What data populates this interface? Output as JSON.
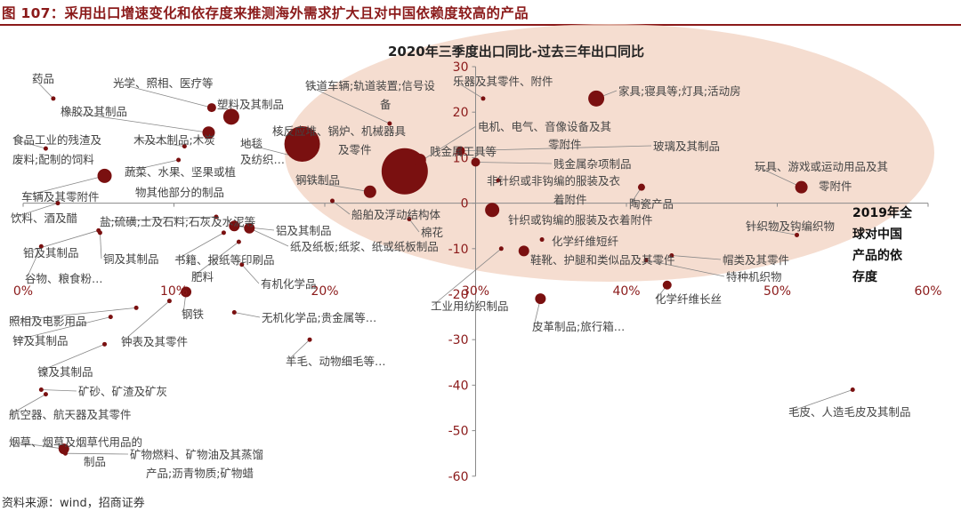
{
  "figure": {
    "title": "图 107：采用出口增速变化和依存度来推测海外需求扩大且对中国依赖度较高的产品",
    "source": "资料来源：wind，招商证券"
  },
  "colors": {
    "accent": "#8b1a1a",
    "marker": "#7a1010",
    "ellipse": "#f2d3c3"
  },
  "chart_data": {
    "type": "scatter",
    "title": "2020年三季度出口同比-过去三年出口同比",
    "xlabel": "2019年全球对中国产品的依存度",
    "ylabel": "",
    "xlim": [
      0,
      0.6
    ],
    "ylim": [
      -60,
      30
    ],
    "x_ticks": [
      "0%",
      "10%",
      "20%",
      "30%",
      "40%",
      "50%",
      "60%"
    ],
    "y_ticks": [
      "30",
      "20",
      "10",
      "0",
      "-10",
      "-20",
      "-30",
      "-40",
      "-50",
      "-60"
    ],
    "highlight": "ellipse over top-right region",
    "points": [
      {
        "label": "药品",
        "x": 0.02,
        "y": 23
      },
      {
        "label": "光学、照相、医疗等",
        "x": 0.125,
        "y": 21
      },
      {
        "label": "塑料及其制品",
        "x": 0.138,
        "y": 19
      },
      {
        "label": "橡胶及其制品",
        "x": 0.123,
        "y": 15.5
      },
      {
        "label": "食品工业的残渣及废料;配制的饲料",
        "x": 0.015,
        "y": 12
      },
      {
        "label": "木及木制品;木炭",
        "x": 0.107,
        "y": 12.5
      },
      {
        "label": "地毯及纺织…",
        "x": 0.183,
        "y": 10
      },
      {
        "label": "蔬菜、水果、坚果或植物其他部分的制品",
        "x": 0.103,
        "y": 9.5
      },
      {
        "label": "车辆及其零附件",
        "x": 0.054,
        "y": 6
      },
      {
        "label": "饮料、酒及醋",
        "x": 0.023,
        "y": 0
      },
      {
        "label": "盐;硫磺;土及石料;石灰及水泥等",
        "x": 0.128,
        "y": -3
      },
      {
        "label": "铅及其制品",
        "x": 0.05,
        "y": -6
      },
      {
        "label": "铜及其制品",
        "x": 0.051,
        "y": -6.5
      },
      {
        "label": "谷物、粮食粉…",
        "x": 0.012,
        "y": -9.5
      },
      {
        "label": "书籍、报纸等印刷品",
        "x": 0.133,
        "y": -6.5
      },
      {
        "label": "铝及其制品",
        "x": 0.14,
        "y": -5
      },
      {
        "label": "纸及纸板;纸浆、纸或纸板制品",
        "x": 0.15,
        "y": -5.5
      },
      {
        "label": "肥料",
        "x": 0.143,
        "y": -8.5
      },
      {
        "label": "有机化学品",
        "x": 0.145,
        "y": -13.5
      },
      {
        "label": "铁道车辆;轨道装置;信号设备",
        "x": 0.243,
        "y": 17.5
      },
      {
        "label": "核反应堆、锅炉、机械器具及零件",
        "x": 0.185,
        "y": 13
      },
      {
        "label": "钢铁制品",
        "x": 0.23,
        "y": 2.5
      },
      {
        "label": "电机、电气、音像设备及其零附件",
        "x": 0.253,
        "y": 7
      },
      {
        "label": "贱金属工具等",
        "x": 0.263,
        "y": 9.5
      },
      {
        "label": "船舶及浮动结构体",
        "x": 0.205,
        "y": 0.5
      },
      {
        "label": "棉花",
        "x": 0.256,
        "y": -3.5
      },
      {
        "label": "乐器及其零件、附件",
        "x": 0.305,
        "y": 23
      },
      {
        "label": "家具;寝具等;灯具;活动房",
        "x": 0.38,
        "y": 23
      },
      {
        "label": "玻璃及其制品",
        "x": 0.29,
        "y": 11.5
      },
      {
        "label": "贱金属杂项制品",
        "x": 0.3,
        "y": 9
      },
      {
        "label": "非针织或非钩编的服装及衣着附件",
        "x": 0.315,
        "y": 5
      },
      {
        "label": "陶瓷产品",
        "x": 0.41,
        "y": 3.5
      },
      {
        "label": "针织或钩编的服装及衣着附件",
        "x": 0.311,
        "y": -1.5
      },
      {
        "label": "玩具、游戏或运动用品及其零附件",
        "x": 0.516,
        "y": 3.5
      },
      {
        "label": "针织物及钩编织物",
        "x": 0.513,
        "y": -7
      },
      {
        "label": "化学纤维短纤",
        "x": 0.344,
        "y": -8
      },
      {
        "label": "鞋靴、护腿和类似品及其零件",
        "x": 0.332,
        "y": -10.5
      },
      {
        "label": "工业用纺织制品",
        "x": 0.317,
        "y": -10
      },
      {
        "label": "帽类及其零件",
        "x": 0.43,
        "y": -11.5
      },
      {
        "label": "特种机织物",
        "x": 0.413,
        "y": -12.5
      },
      {
        "label": "化学纤维长丝",
        "x": 0.427,
        "y": -18
      },
      {
        "label": "皮革制品;旅行箱…",
        "x": 0.343,
        "y": -21
      },
      {
        "label": "照相及电影用品",
        "x": 0.075,
        "y": -23
      },
      {
        "label": "钢铁",
        "x": 0.108,
        "y": -19.5
      },
      {
        "label": "钟表及其零件",
        "x": 0.097,
        "y": -21.5
      },
      {
        "label": "无机化学品;贵金属等…",
        "x": 0.14,
        "y": -24
      },
      {
        "label": "锌及其制品",
        "x": 0.058,
        "y": -25
      },
      {
        "label": "镍及其制品",
        "x": 0.054,
        "y": -31
      },
      {
        "label": "羊毛、动物细毛等…",
        "x": 0.19,
        "y": -30
      },
      {
        "label": "矿砂、矿渣及矿灰",
        "x": 0.012,
        "y": -41
      },
      {
        "label": "航空器、航天器及其零件",
        "x": 0.015,
        "y": -42
      },
      {
        "label": "毛皮、人造毛皮及其制品",
        "x": 0.55,
        "y": -41
      },
      {
        "label": "烟草、烟草及烟草代用品的制品",
        "x": 0.027,
        "y": -54
      },
      {
        "label": "矿物燃料、矿物油及其蒸馏产品;沥青物质;矿物蜡",
        "x": 0.028,
        "y": -55
      }
    ]
  }
}
